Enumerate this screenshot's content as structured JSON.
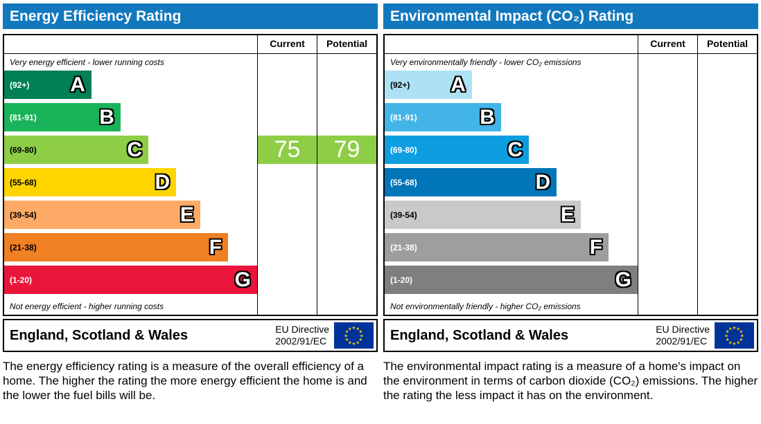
{
  "left": {
    "title": "Energy Efficiency Rating",
    "col_current": "Current",
    "col_potential": "Potential",
    "top_caption": "Very energy efficient - lower running costs",
    "bottom_caption": "Not energy efficient - higher running costs",
    "bands": [
      {
        "range": "(92+)",
        "letter": "A",
        "color": "#008054",
        "width": 34.5,
        "text_color": "#ffffff"
      },
      {
        "range": "(81-91)",
        "letter": "B",
        "color": "#19b459",
        "width": 46,
        "text_color": "#ffffff"
      },
      {
        "range": "(69-80)",
        "letter": "C",
        "color": "#8dce46",
        "width": 57,
        "text_color": "#000000"
      },
      {
        "range": "(55-68)",
        "letter": "D",
        "color": "#ffd500",
        "width": 68,
        "text_color": "#000000"
      },
      {
        "range": "(39-54)",
        "letter": "E",
        "color": "#fcaa65",
        "width": 77.5,
        "text_color": "#000000"
      },
      {
        "range": "(21-38)",
        "letter": "F",
        "color": "#ef8023",
        "width": 88.5,
        "text_color": "#000000"
      },
      {
        "range": "(1-20)",
        "letter": "G",
        "color": "#e9153b",
        "width": 100,
        "text_color": "#ffffff"
      }
    ],
    "current": {
      "value": "75",
      "color": "#8dce46",
      "band_index": 2
    },
    "potential": {
      "value": "79",
      "color": "#8dce46",
      "band_index": 2
    },
    "footer_region": "England, Scotland & Wales",
    "directive_line1": "EU Directive",
    "directive_line2": "2002/91/EC",
    "description": "The energy efficiency rating is a measure of the overall efficiency of a home. The higher the rating the more energy efficient the home is and the lower the fuel bills will be."
  },
  "right": {
    "title": "Environmental Impact (CO₂) Rating",
    "col_current": "Current",
    "col_potential": "Potential",
    "top_caption": "Very environmentally friendly - lower CO₂ emissions",
    "bottom_caption": "Not environmentally friendly - higher CO₂ emissions",
    "bands": [
      {
        "range": "(92+)",
        "letter": "A",
        "color": "#aee1f4",
        "width": 34.5,
        "text_color": "#000000"
      },
      {
        "range": "(81-91)",
        "letter": "B",
        "color": "#42b4e6",
        "width": 46,
        "text_color": "#ffffff"
      },
      {
        "range": "(69-80)",
        "letter": "C",
        "color": "#0d9ee1",
        "width": 57,
        "text_color": "#ffffff"
      },
      {
        "range": "(55-68)",
        "letter": "D",
        "color": "#0075b8",
        "width": 68,
        "text_color": "#ffffff"
      },
      {
        "range": "(39-54)",
        "letter": "E",
        "color": "#c9c9c9",
        "width": 77.5,
        "text_color": "#000000"
      },
      {
        "range": "(21-38)",
        "letter": "F",
        "color": "#9e9e9e",
        "width": 88.5,
        "text_color": "#ffffff"
      },
      {
        "range": "(1-20)",
        "letter": "G",
        "color": "#7f7f7f",
        "width": 100,
        "text_color": "#ffffff"
      }
    ],
    "current": null,
    "potential": null,
    "footer_region": "England, Scotland & Wales",
    "directive_line1": "EU Directive",
    "directive_line2": "2002/91/EC",
    "description": "The environmental impact rating is a measure of a home's impact on the environment in terms of carbon dioxide (CO₂) emissions. The higher the rating the less impact it has on the environment."
  },
  "chart_data": [
    {
      "type": "bar",
      "title": "Energy Efficiency Rating",
      "categories": [
        "A",
        "B",
        "C",
        "D",
        "E",
        "F",
        "G"
      ],
      "ranges": [
        "92+",
        "81-91",
        "69-80",
        "55-68",
        "39-54",
        "21-38",
        "1-20"
      ],
      "values": [
        34.5,
        46,
        57,
        68,
        77.5,
        88.5,
        100
      ],
      "colors": [
        "#008054",
        "#19b459",
        "#8dce46",
        "#ffd500",
        "#fcaa65",
        "#ef8023",
        "#e9153b"
      ],
      "current": 75,
      "current_band": "C",
      "potential": 79,
      "potential_band": "C",
      "top_note": "Very energy efficient - lower running costs",
      "bottom_note": "Not energy efficient - higher running costs",
      "footer": "England, Scotland & Wales — EU Directive 2002/91/EC"
    },
    {
      "type": "bar",
      "title": "Environmental Impact (CO₂) Rating",
      "categories": [
        "A",
        "B",
        "C",
        "D",
        "E",
        "F",
        "G"
      ],
      "ranges": [
        "92+",
        "81-91",
        "69-80",
        "55-68",
        "39-54",
        "21-38",
        "1-20"
      ],
      "values": [
        34.5,
        46,
        57,
        68,
        77.5,
        88.5,
        100
      ],
      "colors": [
        "#aee1f4",
        "#42b4e6",
        "#0d9ee1",
        "#0075b8",
        "#c9c9c9",
        "#9e9e9e",
        "#7f7f7f"
      ],
      "current": null,
      "potential": null,
      "top_note": "Very environmentally friendly - lower CO₂ emissions",
      "bottom_note": "Not environmentally friendly - higher CO₂ emissions",
      "footer": "England, Scotland & Wales — EU Directive 2002/91/EC"
    }
  ]
}
